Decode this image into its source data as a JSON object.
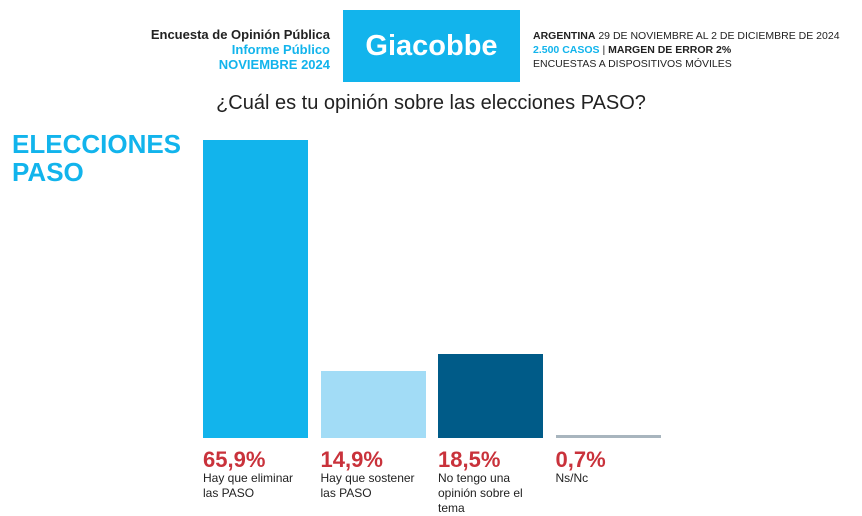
{
  "chart_data": {
    "type": "bar",
    "header": {
      "survey": "Encuesta de Opinión Pública",
      "report": "Informe Público",
      "month": "NOVIEMBRE 2024",
      "brand": "Giacobbe",
      "country": "ARGENTINA",
      "dates": "29 DE NOVIEMBRE AL 2 DE DICIEMBRE DE 2024",
      "cases": "2.500 CASOS",
      "separator": "|",
      "margin": "MARGEN DE ERROR 2%",
      "method": "ENCUESTAS A DISPOSITIVOS MÓVILES"
    },
    "title": "¿Cuál es tu opinión sobre las elecciones PASO?",
    "subtitle": "ELECCIONES PASO",
    "categories": [
      "Hay que eliminar las PASO",
      "Hay que sostener las PASO",
      "No tengo una opinión sobre el tema",
      "Ns/Nc"
    ],
    "values": [
      65.9,
      14.9,
      18.5,
      0.7
    ],
    "value_labels": [
      "65,9%",
      "14,9%",
      "18,5%",
      "0,7%"
    ],
    "colors": [
      "#12b4ec",
      "#a2dcf6",
      "#005b88",
      "#a8b5be"
    ]
  }
}
